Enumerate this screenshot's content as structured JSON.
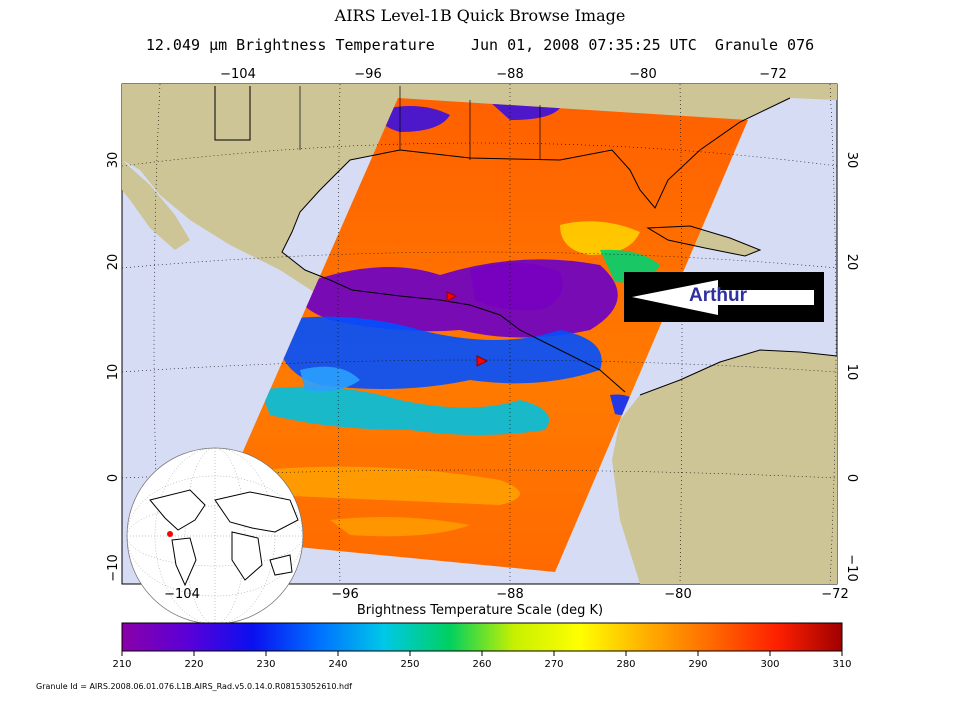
{
  "title": "AIRS Level-1B Quick Browse Image",
  "subtitle": {
    "wavelength": "12.049",
    "unit": "μm",
    "quantity": "Brightness Temperature",
    "datetime": "Jun 01, 2008 07:35:25 UTC",
    "granule": "Granule 076"
  },
  "map": {
    "lon_ticks_top": [
      "−104",
      "−96",
      "−88",
      "−80",
      "−72"
    ],
    "lon_ticks_bottom": [
      "−104",
      "−96",
      "−88",
      "−80",
      "−72"
    ],
    "lat_ticks_left": [
      "30",
      "20",
      "10",
      "0",
      "−10"
    ],
    "lat_ticks_right": [
      "30",
      "20",
      "10",
      "0",
      "−10"
    ],
    "callout_label": "Arthur",
    "colors": {
      "ocean": "#d6dcf4",
      "land": "#cdc596",
      "callout_text": "#2f2fa0"
    }
  },
  "colorbar": {
    "label": "Brightness Temperature Scale (deg K)",
    "ticks": [
      "210",
      "220",
      "230",
      "240",
      "250",
      "260",
      "270",
      "280",
      "290",
      "300",
      "310"
    ],
    "stops": [
      "#8a00a8",
      "#5a00d8",
      "#0a10f0",
      "#0070ff",
      "#00c8e8",
      "#00d060",
      "#c8f000",
      "#ffff00",
      "#ffb000",
      "#ff6a00",
      "#ff2000",
      "#a00000"
    ]
  },
  "granule_id": "Granule Id = AIRS.2008.06.01.076.L1B.AIRS_Rad.v5.0.14.0.R08153052610.hdf"
}
